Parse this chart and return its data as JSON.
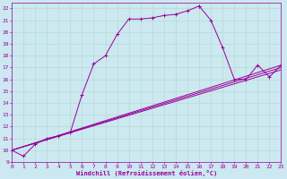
{
  "xlabel": "Windchill (Refroidissement éolien,°C)",
  "bg_color": "#cce8f0",
  "line_color": "#990099",
  "grid_color": "#b0d8cc",
  "xlim": [
    0,
    23
  ],
  "ylim": [
    9,
    22.5
  ],
  "xticks": [
    0,
    1,
    2,
    3,
    4,
    5,
    6,
    7,
    8,
    9,
    10,
    11,
    12,
    13,
    14,
    15,
    16,
    17,
    18,
    19,
    20,
    21,
    22,
    23
  ],
  "yticks": [
    9,
    10,
    11,
    12,
    13,
    14,
    15,
    16,
    17,
    18,
    19,
    20,
    21,
    22
  ],
  "curve1_x": [
    0,
    1,
    2,
    3,
    4,
    5,
    6,
    7,
    8,
    9,
    10,
    11,
    12,
    13,
    14,
    15,
    16
  ],
  "curve1_y": [
    10.0,
    9.5,
    10.5,
    11.0,
    11.2,
    11.5,
    14.7,
    17.3,
    18.0,
    19.8,
    21.1,
    21.1,
    21.2,
    21.4,
    21.5,
    21.8,
    22.2
  ],
  "curve2_x": [
    16,
    17,
    18,
    19,
    20,
    21,
    22,
    23
  ],
  "curve2_y": [
    22.2,
    21.0,
    18.7,
    16.0,
    16.0,
    17.2,
    16.2,
    17.2
  ],
  "line1_x": [
    0,
    23
  ],
  "line1_y": [
    10.0,
    17.2
  ],
  "line2_x": [
    0,
    23
  ],
  "line2_y": [
    10.0,
    17.0
  ],
  "line3_x": [
    0,
    23
  ],
  "line3_y": [
    10.0,
    16.8
  ]
}
